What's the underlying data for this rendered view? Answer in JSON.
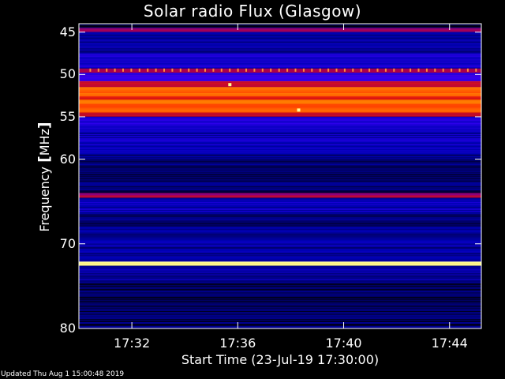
{
  "chart_data": {
    "type": "heatmap",
    "title": "Solar radio Flux (Glasgow)",
    "xlabel": "Start Time (23-Jul-19 17:30:00)",
    "ylabel_prefix": "Frequency ",
    "ylabel_bracket_open": "[",
    "ylabel_unit": "MHz",
    "ylabel_bracket_close": "]",
    "x_ticks": [
      {
        "label": "17:32",
        "minute": 2
      },
      {
        "label": "17:36",
        "minute": 6
      },
      {
        "label": "17:40",
        "minute": 10
      },
      {
        "label": "17:44",
        "minute": 14
      }
    ],
    "xlim_minutes": [
      0,
      15.2
    ],
    "y_ticks": [
      "45",
      "50",
      "55",
      "60",
      "70",
      "80"
    ],
    "y_tick_values": [
      45,
      50,
      55,
      60,
      70,
      80
    ],
    "ylim": [
      44,
      80
    ],
    "colormap": [
      "#000000",
      "#0000b4",
      "#3c00ff",
      "#b4003c",
      "#ff2800",
      "#ff8c00",
      "#ffff96"
    ],
    "bands": [
      {
        "from": 44.0,
        "to": 44.5,
        "level": 0.05
      },
      {
        "from": 44.5,
        "to": 45.0,
        "level": 0.45
      },
      {
        "from": 45.0,
        "to": 47.5,
        "level": 0.15
      },
      {
        "from": 47.5,
        "to": 49.3,
        "level": 0.22
      },
      {
        "from": 49.3,
        "to": 49.8,
        "level": 0.5
      },
      {
        "from": 49.8,
        "to": 50.8,
        "level": 0.3
      },
      {
        "from": 50.8,
        "to": 51.5,
        "level": 0.55
      },
      {
        "from": 51.5,
        "to": 52.6,
        "level": 0.78
      },
      {
        "from": 52.6,
        "to": 53.0,
        "level": 0.62
      },
      {
        "from": 53.0,
        "to": 54.5,
        "level": 0.76
      },
      {
        "from": 54.5,
        "to": 55.0,
        "level": 0.55
      },
      {
        "from": 55.0,
        "to": 56.5,
        "level": 0.24
      },
      {
        "from": 56.5,
        "to": 59.5,
        "level": 0.18
      },
      {
        "from": 59.5,
        "to": 64.0,
        "level": 0.1
      },
      {
        "from": 64.0,
        "to": 64.6,
        "level": 0.5
      },
      {
        "from": 64.6,
        "to": 66.5,
        "level": 0.18
      },
      {
        "from": 66.5,
        "to": 69.5,
        "level": 0.12
      },
      {
        "from": 69.5,
        "to": 72.1,
        "level": 0.14
      },
      {
        "from": 72.1,
        "to": 72.6,
        "level": 1.0
      },
      {
        "from": 72.6,
        "to": 74.5,
        "level": 0.16
      },
      {
        "from": 74.5,
        "to": 80.0,
        "level": 0.08
      }
    ],
    "spikes": [
      {
        "minute": 5.7,
        "mhz": 51.2,
        "level": 1.0
      },
      {
        "minute": 8.3,
        "mhz": 54.2,
        "level": 1.0
      }
    ]
  },
  "footer": {
    "updated": "Updated Thu Aug  1 15:00:48 2019"
  }
}
